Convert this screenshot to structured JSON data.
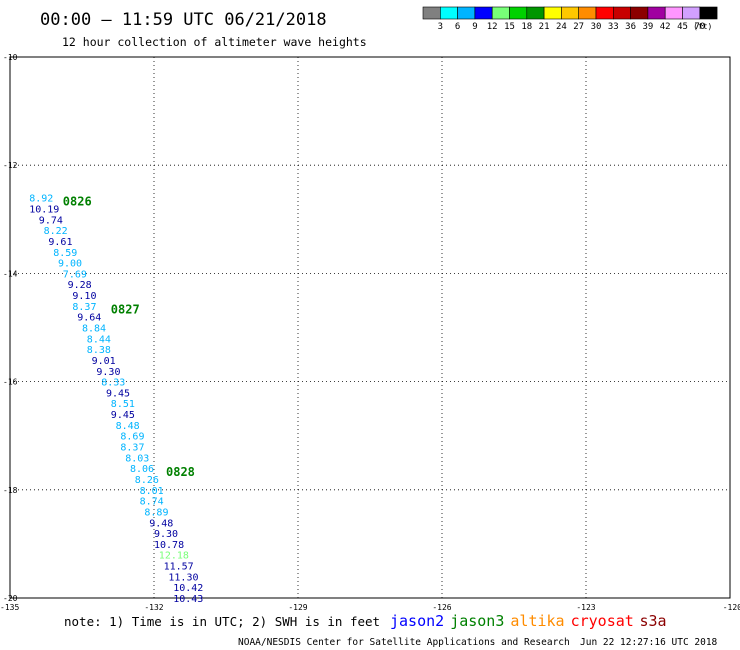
{
  "header": {
    "title": "00:00 – 11:59 UTC 06/21/2018",
    "subtitle": "12 hour collection of altimeter wave heights"
  },
  "legend": {
    "colors": [
      "#808080",
      "#00ffff",
      "#00b4ff",
      "#0000ff",
      "#78ff78",
      "#00d200",
      "#009600",
      "#ffff00",
      "#ffc800",
      "#ff8c00",
      "#ff0000",
      "#c80000",
      "#8c0000",
      "#a000a0",
      "#ff96ff",
      "#d2a0ff",
      "#000000"
    ],
    "labels": [
      "3",
      "6",
      "9",
      "12",
      "15",
      "18",
      "21",
      "24",
      "27",
      "30",
      "33",
      "36",
      "39",
      "42",
      "45",
      "70"
    ],
    "unit": "(ft)"
  },
  "axes": {
    "lat_labels": [
      "-10",
      "-12",
      "-14",
      "-16",
      "-18",
      "-20"
    ],
    "lat_values": [
      -10,
      -12,
      -14,
      -16,
      -18,
      -20
    ],
    "lon_labels": [
      "-135",
      "-132",
      "-129",
      "-126",
      "-123",
      "-120"
    ],
    "lon_values": [
      -135,
      -132,
      -129,
      -126,
      -123,
      -120
    ],
    "lat_range": [
      -20,
      -10
    ],
    "lon_range": [
      -135,
      -120
    ]
  },
  "track": [
    {
      "lon": -134.6,
      "lat": -12.6,
      "swh": "8.92",
      "color": "#00b4ff"
    },
    {
      "lon": -134.6,
      "lat": -12.8,
      "swh": "10.19",
      "color": "#0000a0"
    },
    {
      "lon": -134.4,
      "lat": -13.0,
      "swh": "9.74",
      "color": "#0000a0"
    },
    {
      "lon": -134.3,
      "lat": -13.2,
      "swh": "8.22",
      "color": "#00b4ff"
    },
    {
      "lon": -134.2,
      "lat": -13.4,
      "swh": "9.61",
      "color": "#0000a0"
    },
    {
      "lon": -134.1,
      "lat": -13.6,
      "swh": "8.59",
      "color": "#00b4ff"
    },
    {
      "lon": -134.0,
      "lat": -13.8,
      "swh": "9.00",
      "color": "#00b4ff"
    },
    {
      "lon": -133.9,
      "lat": -14.0,
      "swh": "7.69",
      "color": "#00b4ff"
    },
    {
      "lon": -133.8,
      "lat": -14.2,
      "swh": "9.28",
      "color": "#0000a0"
    },
    {
      "lon": -133.7,
      "lat": -14.4,
      "swh": "9.10",
      "color": "#0000a0"
    },
    {
      "lon": -133.7,
      "lat": -14.6,
      "swh": "8.37",
      "color": "#00b4ff"
    },
    {
      "lon": -133.6,
      "lat": -14.8,
      "swh": "9.64",
      "color": "#0000a0"
    },
    {
      "lon": -133.5,
      "lat": -15.0,
      "swh": "8.84",
      "color": "#00b4ff"
    },
    {
      "lon": -133.4,
      "lat": -15.2,
      "swh": "8.44",
      "color": "#00b4ff"
    },
    {
      "lon": -133.4,
      "lat": -15.4,
      "swh": "8.38",
      "color": "#00b4ff"
    },
    {
      "lon": -133.3,
      "lat": -15.6,
      "swh": "9.01",
      "color": "#0000a0"
    },
    {
      "lon": -133.2,
      "lat": -15.8,
      "swh": "9.30",
      "color": "#0000a0"
    },
    {
      "lon": -133.1,
      "lat": -16.0,
      "swh": "8.33",
      "color": "#00b4ff"
    },
    {
      "lon": -133.0,
      "lat": -16.2,
      "swh": "9.45",
      "color": "#0000a0"
    },
    {
      "lon": -132.9,
      "lat": -16.4,
      "swh": "8.51",
      "color": "#00b4ff"
    },
    {
      "lon": -132.9,
      "lat": -16.6,
      "swh": "9.45",
      "color": "#0000a0"
    },
    {
      "lon": -132.8,
      "lat": -16.8,
      "swh": "8.48",
      "color": "#00b4ff"
    },
    {
      "lon": -132.7,
      "lat": -17.0,
      "swh": "8.69",
      "color": "#00b4ff"
    },
    {
      "lon": -132.7,
      "lat": -17.2,
      "swh": "8.37",
      "color": "#00b4ff"
    },
    {
      "lon": -132.6,
      "lat": -17.4,
      "swh": "8.03",
      "color": "#00b4ff"
    },
    {
      "lon": -132.5,
      "lat": -17.6,
      "swh": "8.06",
      "color": "#00b4ff"
    },
    {
      "lon": -132.4,
      "lat": -17.8,
      "swh": "8.26",
      "color": "#00b4ff"
    },
    {
      "lon": -132.3,
      "lat": -18.0,
      "swh": "8.01",
      "color": "#00b4ff"
    },
    {
      "lon": -132.3,
      "lat": -18.2,
      "swh": "8.74",
      "color": "#00b4ff"
    },
    {
      "lon": -132.2,
      "lat": -18.4,
      "swh": "8.89",
      "color": "#00b4ff"
    },
    {
      "lon": -132.1,
      "lat": -18.6,
      "swh": "9.48",
      "color": "#0000a0"
    },
    {
      "lon": -132.0,
      "lat": -18.8,
      "swh": "9.30",
      "color": "#0000a0"
    },
    {
      "lon": -132.0,
      "lat": -19.0,
      "swh": "10.78",
      "color": "#0000a0"
    },
    {
      "lon": -131.9,
      "lat": -19.2,
      "swh": "12.18",
      "color": "#78ff78"
    },
    {
      "lon": -131.8,
      "lat": -19.4,
      "swh": "11.57",
      "color": "#0000a0"
    },
    {
      "lon": -131.7,
      "lat": -19.6,
      "swh": "11.30",
      "color": "#0000a0"
    },
    {
      "lon": -131.6,
      "lat": -19.8,
      "swh": "10.42",
      "color": "#0000a0"
    },
    {
      "lon": -131.6,
      "lat": -20.0,
      "swh": "10.43",
      "color": "#0000a0"
    }
  ],
  "time_labels": [
    {
      "lon": -133.9,
      "lat": -12.65,
      "text": "0826"
    },
    {
      "lon": -132.9,
      "lat": -14.65,
      "text": "0827"
    },
    {
      "lon": -131.75,
      "lat": -17.65,
      "text": "0828"
    }
  ],
  "time_label_color": "#008000",
  "note": "note: 1) Time is in UTC; 2) SWH is in feet",
  "satellites": [
    {
      "name": "jason2",
      "color": "#0000ff"
    },
    {
      "name": "jason3",
      "color": "#008000"
    },
    {
      "name": "altika",
      "color": "#ff8c00"
    },
    {
      "name": "cryosat",
      "color": "#ff0000"
    },
    {
      "name": "s3a",
      "color": "#8b0000"
    }
  ],
  "footer": {
    "credit": "NOAA/NESDIS Center for Satellite Applications and Research",
    "timestamp": "Jun 22 12:27:16 UTC 2018"
  }
}
